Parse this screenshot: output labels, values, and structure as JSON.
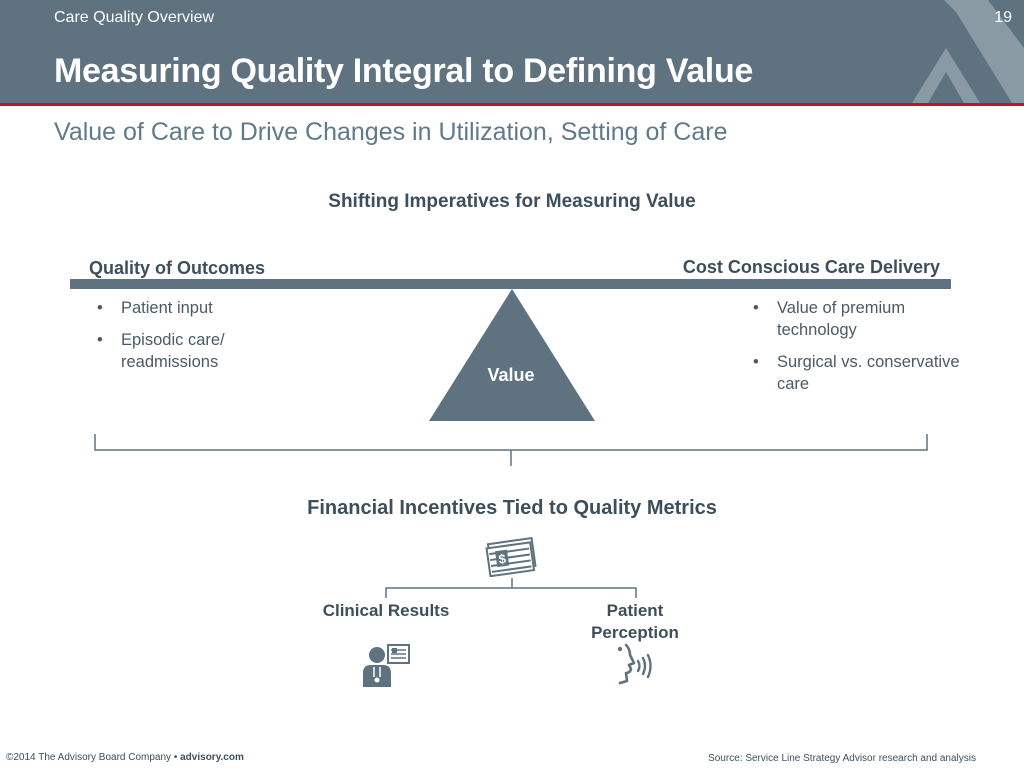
{
  "header": {
    "section": "Care Quality Overview",
    "page_number": "19",
    "title": "Measuring Quality Integral to Defining Value",
    "subtitle": "Value of Care to Drive Changes in Utilization, Setting of Care",
    "background_color": "#5f7280",
    "accent_color": "#c8102e",
    "decoration_icon": "stylized-a-logo-icon"
  },
  "diagram": {
    "title": "Shifting Imperatives for Measuring Value",
    "left": {
      "heading": "Quality of Outcomes",
      "bullets": [
        "Patient input",
        "Episodic care/ readmissions"
      ]
    },
    "right": {
      "heading": "Cost Conscious Care Delivery",
      "bullets": [
        "Value of premium technology",
        "Surgical vs. conservative care"
      ]
    },
    "fulcrum_label": "Value",
    "fulcrum_icon": "triangle-fulcrum-icon"
  },
  "incentives": {
    "title": "Financial Incentives Tied to Quality Metrics",
    "icon": "money-stack-icon",
    "branches": [
      {
        "label": "Clinical Results",
        "icon": "doctor-chart-icon"
      },
      {
        "label": "Patient Perception",
        "icon": "speaking-head-icon"
      }
    ]
  },
  "footer": {
    "copyright": "©2014 The Advisory Board Company • ",
    "website": "advisory.com",
    "source": "Source: Service Line Strategy Advisor research and analysis"
  }
}
